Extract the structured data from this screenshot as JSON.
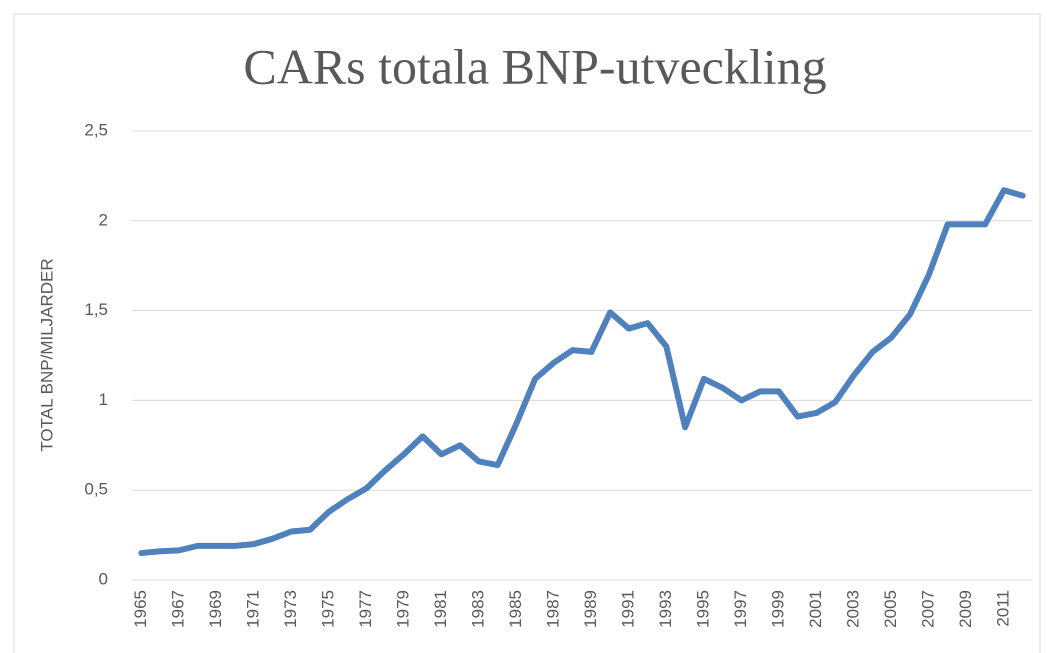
{
  "chart_data": {
    "type": "line",
    "title": "CARs totala BNP-utveckling",
    "y_label": "TOTAL BNP/MILJARDER",
    "categories": [
      "1965",
      null,
      "1967",
      null,
      "1969",
      null,
      "1971",
      null,
      "1973",
      null,
      "1975",
      null,
      "1977",
      null,
      "1979",
      null,
      "1981",
      null,
      "1983",
      null,
      "1985",
      null,
      "1987",
      null,
      "1989",
      null,
      "1991",
      null,
      "1993",
      null,
      "1995",
      null,
      "1997",
      null,
      "1999",
      null,
      "2001",
      null,
      "2003",
      null,
      "2005",
      null,
      "2007",
      null,
      "2009",
      null,
      "2011",
      null
    ],
    "series": [
      {
        "name": "BNP",
        "color": "#4f81bd",
        "values": [
          0.15,
          0.16,
          0.165,
          0.19,
          0.19,
          0.19,
          0.2,
          0.23,
          0.27,
          0.28,
          0.38,
          0.45,
          0.51,
          0.61,
          0.7,
          0.8,
          0.7,
          0.75,
          0.66,
          0.64,
          0.87,
          1.12,
          1.21,
          1.28,
          1.27,
          1.49,
          1.4,
          1.43,
          1.3,
          0.85,
          1.12,
          1.07,
          1.0,
          1.05,
          1.05,
          0.91,
          0.93,
          0.99,
          1.14,
          1.27,
          1.35,
          1.48,
          1.7,
          1.98,
          1.98,
          1.98,
          2.17,
          2.14
        ]
      }
    ],
    "ylim": [
      0,
      2.5
    ],
    "yticks": [
      0,
      {
        "value": 0.5,
        "label": "0,5"
      },
      1,
      {
        "value": 1.5,
        "label": "1,5"
      },
      2,
      {
        "value": 2.5,
        "label": "2,5"
      }
    ],
    "grid": true
  }
}
